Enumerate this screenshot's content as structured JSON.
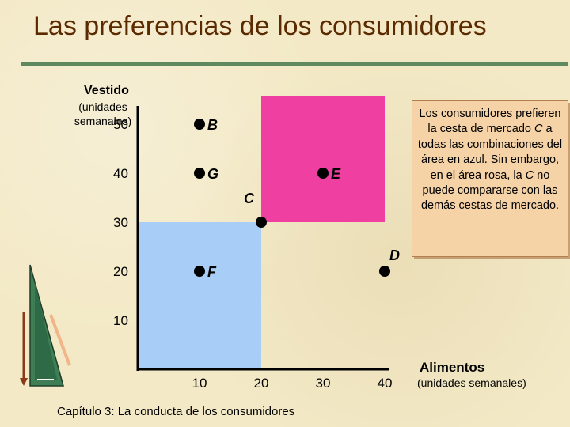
{
  "title": "Las preferencias de los consumidores",
  "footer": "Capítulo 3: La conducta de los consumidores",
  "note": {
    "p1": "Los consumidores prefieren la cesta de mercado ",
    "em1": "C",
    "p2": " a todas las combinaciones del área en azul. Sin embargo, en el área rosa, la ",
    "em2": "C",
    "p3": " no puede compararse con las demás cestas de mercado."
  },
  "colors": {
    "blue_area": "#a8cdf6",
    "pink_area": "#ef3fa1",
    "axis": "#000000",
    "title": "#5b2a00",
    "rule": "#5f8a5f"
  },
  "chart_data": {
    "type": "scatter",
    "xlabel": "Alimentos",
    "xlabel_sub": "(unidades semanales)",
    "ylabel": "Vestido",
    "ylabel_sub": "(unidades semanales)",
    "xlim": [
      0,
      40
    ],
    "ylim": [
      0,
      55
    ],
    "xticks": [
      "10",
      "20",
      "30",
      "40"
    ],
    "yticks": [
      "50",
      "40",
      "30",
      "20",
      "10"
    ],
    "points": [
      {
        "label": "B",
        "x": 10,
        "y": 50
      },
      {
        "label": "G",
        "x": 10,
        "y": 40
      },
      {
        "label": "E",
        "x": 30,
        "y": 40
      },
      {
        "label": "C",
        "x": 20,
        "y": 30
      },
      {
        "label": "F",
        "x": 10,
        "y": 20
      },
      {
        "label": "D",
        "x": 40,
        "y": 20
      }
    ],
    "regions": [
      {
        "name": "blue",
        "from": [
          0,
          0
        ],
        "to": [
          20,
          30
        ],
        "color": "#a8cdf6"
      },
      {
        "name": "pink",
        "from": [
          20,
          30
        ],
        "to": [
          40,
          55
        ],
        "color": "#ef3fa1"
      }
    ]
  }
}
